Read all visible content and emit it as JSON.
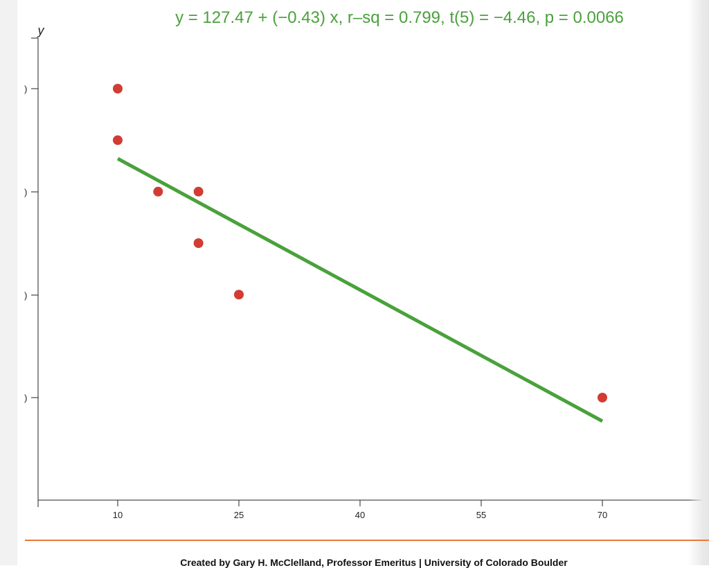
{
  "colors": {
    "fit_line": "#4aa13c",
    "points": "#d23c32",
    "axis": "#222222",
    "footer_rule": "#e8793a"
  },
  "chart_data": {
    "type": "scatter",
    "title": "y = 127.47 + (−0.43) x, r–sq = 0.799, t(5) = −4.46, p = 0.0066",
    "xlabel": "",
    "ylabel": "y",
    "x_ticks": [
      10,
      25,
      40,
      55,
      70
    ],
    "y_tick_labels": [
      ")",
      ")",
      ")",
      ")"
    ],
    "xlim": [
      0,
      83
    ],
    "points": [
      {
        "x": 10,
        "y": 120
      },
      {
        "x": 10,
        "y": 115
      },
      {
        "x": 15,
        "y": 110
      },
      {
        "x": 20,
        "y": 110
      },
      {
        "x": 20,
        "y": 105
      },
      {
        "x": 25,
        "y": 100
      },
      {
        "x": 70,
        "y": 90
      }
    ],
    "fit": {
      "intercept": 127.47,
      "slope": -0.43,
      "x_range": [
        10,
        70
      ]
    },
    "grid": false
  },
  "footer": {
    "credit": "Created by Gary H. McClelland, Professor Emeritus | University of Colorado Boulder"
  }
}
